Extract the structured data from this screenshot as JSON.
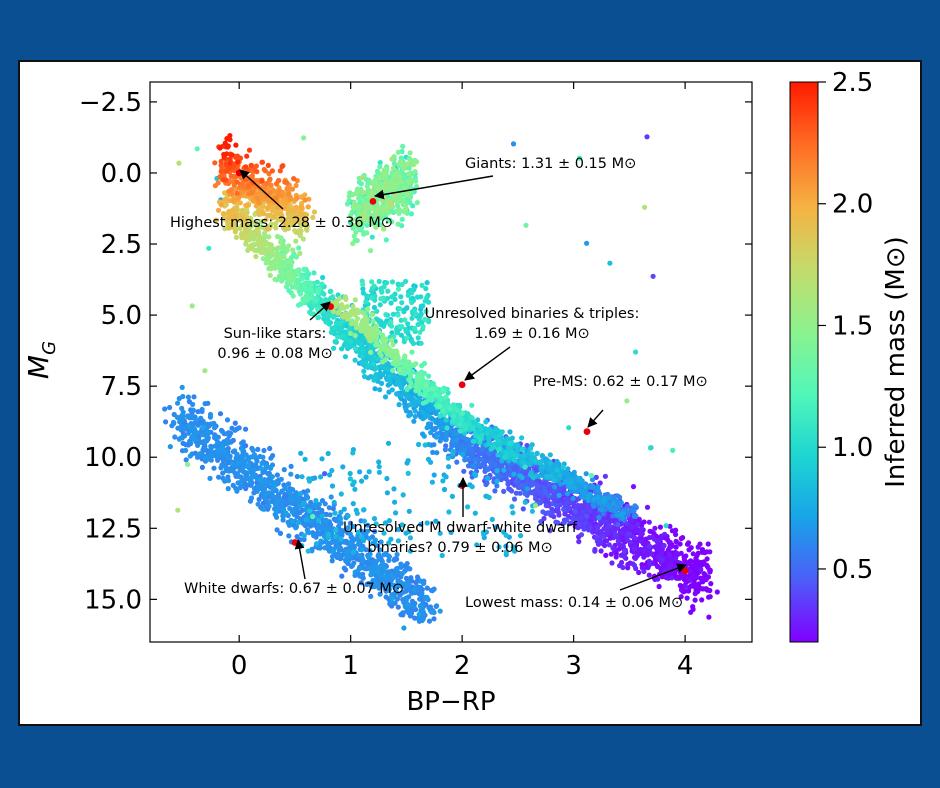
{
  "chart_data": {
    "type": "scatter",
    "xlabel": "BP−RP",
    "ylabel_main": "M",
    "ylabel_sub": "G",
    "xlim": [
      -0.8,
      4.6
    ],
    "ylim": [
      16.5,
      -3.2
    ],
    "y_inverted": true,
    "grid": false,
    "xticks": [
      0,
      1,
      2,
      3,
      4
    ],
    "xtick_labels": [
      "0",
      "1",
      "2",
      "3",
      "4"
    ],
    "yticks": [
      -2.5,
      0.0,
      2.5,
      5.0,
      7.5,
      10.0,
      12.5,
      15.0
    ],
    "ytick_labels": [
      "−2.5",
      "0.0",
      "2.5",
      "5.0",
      "7.5",
      "10.0",
      "12.5",
      "15.0"
    ],
    "colorbar": {
      "label": "Inferred mass (M⊙)",
      "range": [
        0.2,
        2.5
      ],
      "ticks": [
        0.5,
        1.0,
        1.5,
        2.0,
        2.5
      ],
      "tick_labels": [
        "0.5",
        "1.0",
        "1.5",
        "2.0",
        "2.5"
      ],
      "colormap": "rainbow",
      "stops": [
        "#8000ff",
        "#4c5ef9",
        "#18a4e8",
        "#1ed6d2",
        "#52f7b8",
        "#8cf28e",
        "#c4db6b",
        "#f5b242",
        "#ff6b24",
        "#ff1a00"
      ]
    },
    "regions": [
      {
        "name": "main-sequence",
        "x_range": [
          -0.2,
          4.3
        ],
        "mass_range": [
          0.14,
          1.8
        ]
      },
      {
        "name": "giants",
        "x_range": [
          1.0,
          1.8
        ],
        "y_range": [
          -1.4,
          2.5
        ],
        "mass_approx": 1.31
      },
      {
        "name": "white-dwarfs",
        "x_range": [
          -0.6,
          1.8
        ],
        "y_range": [
          7.5,
          15.8
        ],
        "mass_approx": 0.67
      }
    ],
    "highlight_points": [
      {
        "x": 0.0,
        "y": 0.0,
        "label": "Highest mass: 2.28 ± 0.36 M⊙"
      },
      {
        "x": 1.2,
        "y": 1.0,
        "label": "Giants: 1.31 ± 0.15 M⊙"
      },
      {
        "x": 0.82,
        "y": 4.7,
        "label_lines": [
          "Sun-like stars:",
          "0.96 ± 0.08 M⊙"
        ]
      },
      {
        "x": 2.0,
        "y": 7.45,
        "label_lines": [
          "Unresolved binaries & triples:",
          "1.69 ± 0.16 M⊙"
        ]
      },
      {
        "x": 3.12,
        "y": 9.1,
        "label": "Pre-MS: 0.62 ± 0.17 M⊙"
      },
      {
        "x": 2.0,
        "y": 11.0,
        "label_lines": [
          "Unresolved M dwarf-white dwarf",
          "binaries? 0.79 ± 0.06 M⊙"
        ]
      },
      {
        "x": 0.5,
        "y": 13.0,
        "label": "White dwarfs: 0.67 ± 0.07 M⊙"
      },
      {
        "x": 4.0,
        "y": 14.0,
        "label": "Lowest mass: 0.14 ± 0.06 M⊙"
      }
    ]
  }
}
